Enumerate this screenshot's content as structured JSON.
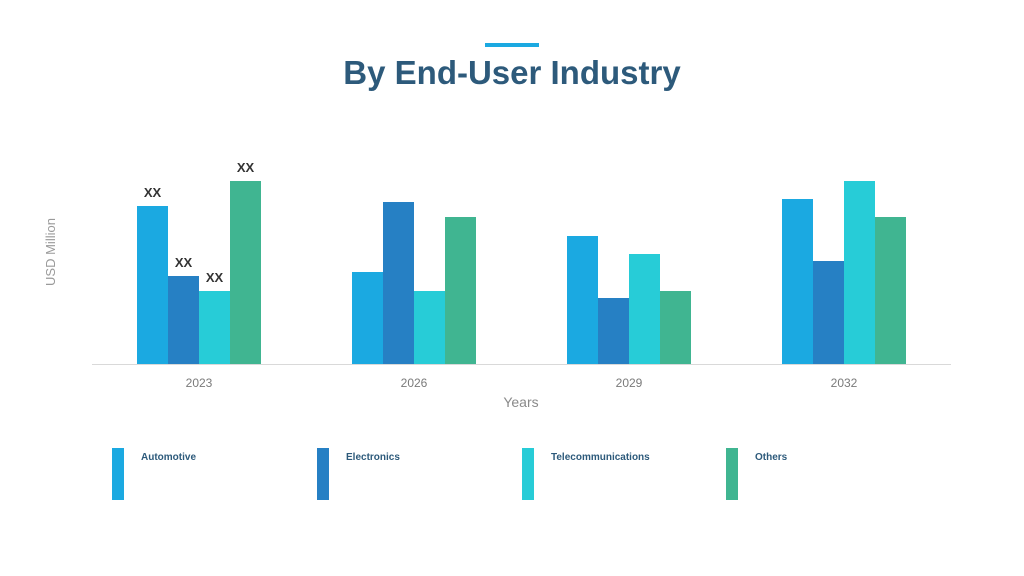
{
  "title": "By End-User Industry",
  "colors": {
    "accent": "#1ba9e1",
    "title": "#2d5a7b",
    "series": [
      "#1ba9e1",
      "#2680c4",
      "#27ccd7",
      "#40b591"
    ],
    "axis_text": "#7a7a7a",
    "value_label": "#333333"
  },
  "chart_data": {
    "type": "bar",
    "title": "By End-User Industry",
    "xlabel": "Years",
    "ylabel": "USD Million",
    "categories": [
      "2023",
      "2026",
      "2029",
      "2032"
    ],
    "ylim": [
      0,
      200
    ],
    "grid": false,
    "legend_position": "bottom",
    "series": [
      {
        "name": "Automotive",
        "values": [
          158,
          92,
          128,
          165
        ]
      },
      {
        "name": "Electronics",
        "values": [
          88,
          162,
          66,
          103
        ]
      },
      {
        "name": "Telecommunications",
        "values": [
          73,
          73,
          110,
          183
        ]
      },
      {
        "name": "Others",
        "values": [
          183,
          147,
          73,
          147
        ]
      }
    ],
    "data_labels": [
      {
        "category": "2023",
        "series": "Automotive",
        "text": "XX"
      },
      {
        "category": "2023",
        "series": "Electronics",
        "text": "XX"
      },
      {
        "category": "2023",
        "series": "Telecommunications",
        "text": "XX"
      },
      {
        "category": "2023",
        "series": "Others",
        "text": "XX"
      }
    ]
  }
}
